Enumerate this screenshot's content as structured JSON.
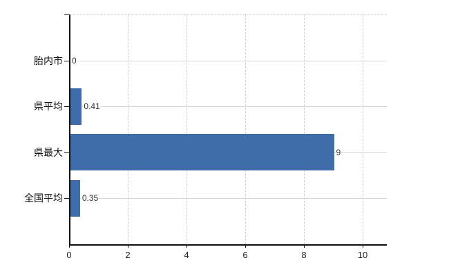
{
  "chart_data": {
    "type": "bar",
    "orientation": "horizontal",
    "title": "",
    "xlabel": "",
    "ylabel": "",
    "categories": [
      "胎内市",
      "県平均",
      "県最大",
      "全国平均"
    ],
    "values": [
      0,
      0.41,
      9,
      0.35
    ],
    "value_labels": [
      "0",
      "0.41",
      "9",
      "0.35"
    ],
    "xlim": [
      0,
      10
    ],
    "x_ticks": [
      0,
      2,
      4,
      6,
      8,
      10
    ],
    "x_tick_labels": [
      "0",
      "2",
      "4",
      "6",
      "8",
      "10"
    ],
    "grid": true,
    "gridline_style": "vertical dashed, horizontal solid per category, dashed top border",
    "legend": false,
    "colors": {
      "bar": "#3f6da9",
      "axis": "#111111",
      "gridline": "#cfcfcf",
      "category_label": "#111111",
      "value_label": "#333333",
      "tick_label": "#222222",
      "background": "#ffffff"
    }
  }
}
